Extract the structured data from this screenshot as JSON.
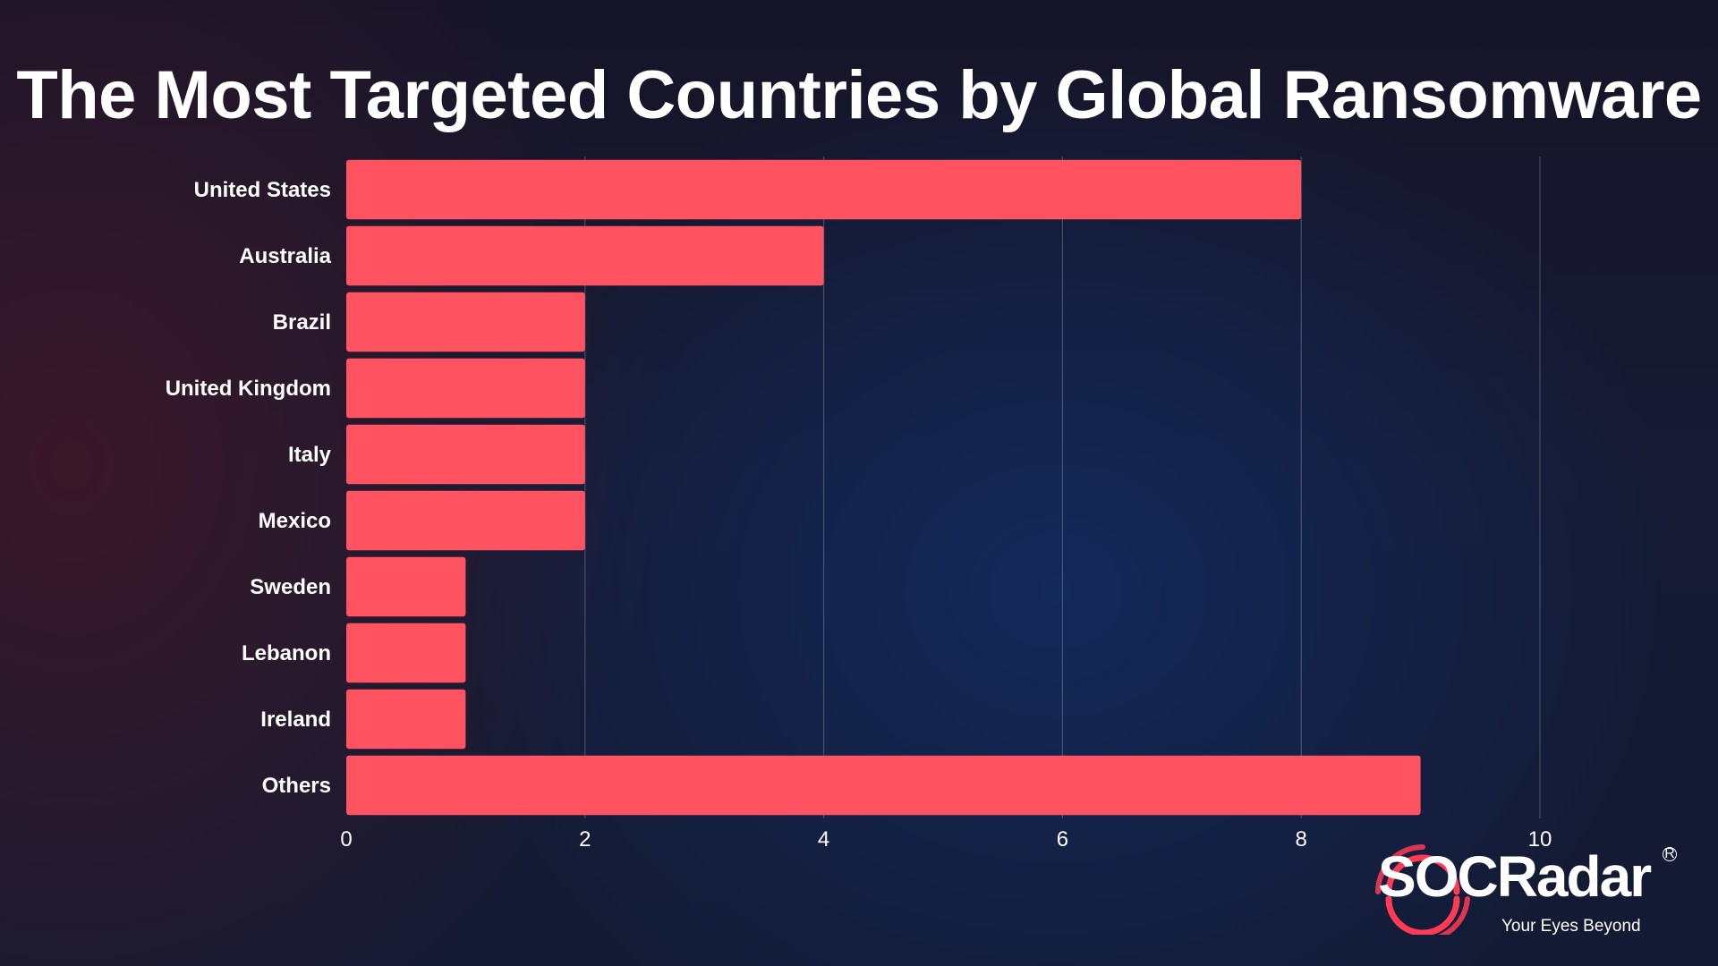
{
  "chart_data": {
    "type": "bar",
    "orientation": "horizontal",
    "title": "The Most Targeted Countries by Global Ransomware",
    "categories": [
      "United States",
      "Australia",
      "Brazil",
      "United Kingdom",
      "Italy",
      "Mexico",
      "Sweden",
      "Lebanon",
      "Ireland",
      "Others"
    ],
    "values": [
      8,
      4,
      2,
      2,
      2,
      2,
      1,
      1,
      1,
      9
    ],
    "xlim": [
      0,
      10
    ],
    "xticks": [
      "0",
      "2",
      "4",
      "6",
      "8",
      "10"
    ],
    "grid": "vertical",
    "bar_color": "#ff5362",
    "xlabel": "",
    "ylabel": ""
  },
  "brand": {
    "name": "SOCRadar",
    "tagline": "Your Eyes Beyond",
    "registered": "R",
    "accent": "#ff3a55"
  }
}
